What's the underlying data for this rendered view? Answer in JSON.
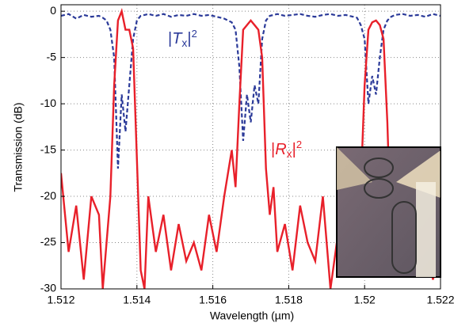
{
  "chart_data": {
    "type": "line",
    "x_label": "Wavelength (µm)",
    "y_label": "Transmission (dB)",
    "xlim": [
      1.512,
      1.522
    ],
    "xticks": [
      1.512,
      1.514,
      1.516,
      1.518,
      1.52,
      1.522
    ],
    "ylim": [
      -30,
      0.7
    ],
    "yticks": [
      0,
      -5,
      -10,
      -15,
      -20,
      -25,
      -30
    ],
    "grid": true,
    "x": [
      1.512,
      1.5122,
      1.5124,
      1.5126,
      1.5128,
      1.513,
      1.5131,
      1.5132,
      1.5133,
      1.5134,
      1.5135,
      1.5136,
      1.5137,
      1.5138,
      1.5139,
      1.514,
      1.5141,
      1.5142,
      1.5143,
      1.5145,
      1.5147,
      1.5149,
      1.5151,
      1.5153,
      1.5155,
      1.5157,
      1.5159,
      1.5161,
      1.5163,
      1.5165,
      1.5166,
      1.5167,
      1.5168,
      1.5169,
      1.517,
      1.5171,
      1.5172,
      1.5173,
      1.5174,
      1.5175,
      1.5176,
      1.5177,
      1.5179,
      1.5181,
      1.5183,
      1.5185,
      1.5187,
      1.5189,
      1.5191,
      1.5193,
      1.5195,
      1.5197,
      1.5198,
      1.5199,
      1.52,
      1.5201,
      1.5202,
      1.5203,
      1.5204,
      1.5205,
      1.5206,
      1.5207,
      1.5208,
      1.521,
      1.5212,
      1.5214,
      1.5216,
      1.5218,
      1.522
    ],
    "series": [
      {
        "label": [
          "|",
          "T",
          "x",
          "|",
          "2"
        ],
        "color": "#2b3a99",
        "dashed": true,
        "values": [
          -0.5,
          -0.3,
          -0.8,
          -0.4,
          -0.6,
          -0.5,
          -0.7,
          -1,
          -2,
          -5,
          -17,
          -9,
          -13,
          -8,
          -3,
          -1,
          -0.5,
          -0.4,
          -0.3,
          -0.5,
          -0.3,
          -0.6,
          -0.4,
          -0.5,
          -0.3,
          -0.5,
          -0.4,
          -0.6,
          -0.8,
          -1.2,
          -2,
          -6,
          -14,
          -9,
          -12,
          -8,
          -10,
          -3,
          -1,
          -0.5,
          -0.4,
          -0.3,
          -0.5,
          -0.4,
          -0.3,
          -0.5,
          -0.6,
          -0.4,
          -0.3,
          -0.5,
          -0.4,
          -0.6,
          -0.7,
          -1.5,
          -3,
          -10,
          -7,
          -9,
          -5,
          -2,
          -1,
          -0.6,
          -0.4,
          -0.3,
          -0.5,
          -0.4,
          -0.6,
          -0.3,
          -0.5
        ]
      },
      {
        "label": [
          "|",
          "R",
          "x",
          "|",
          "2"
        ],
        "color": "#e8202a",
        "dashed": false,
        "values": [
          -17.5,
          -26,
          -21,
          -29,
          -20,
          -22,
          -30,
          -25,
          -20,
          -8,
          -1,
          0,
          -2,
          -2,
          -4,
          -16,
          -28,
          -30,
          -20,
          -26,
          -22,
          -28,
          -23,
          -27,
          -25,
          -28,
          -22,
          -26,
          -20,
          -15,
          -19,
          -10,
          -2,
          -1.5,
          -1,
          -1.5,
          -2,
          -5,
          -17,
          -22,
          -19,
          -26,
          -23,
          -28,
          -21,
          -25,
          -27,
          -20,
          -30,
          -24,
          -27,
          -22,
          -26,
          -19,
          -8,
          -2,
          -1.2,
          -1,
          -1.5,
          -3,
          -12,
          -25,
          -22,
          -28,
          -23,
          -27,
          -24,
          -29,
          -26
        ]
      }
    ]
  }
}
